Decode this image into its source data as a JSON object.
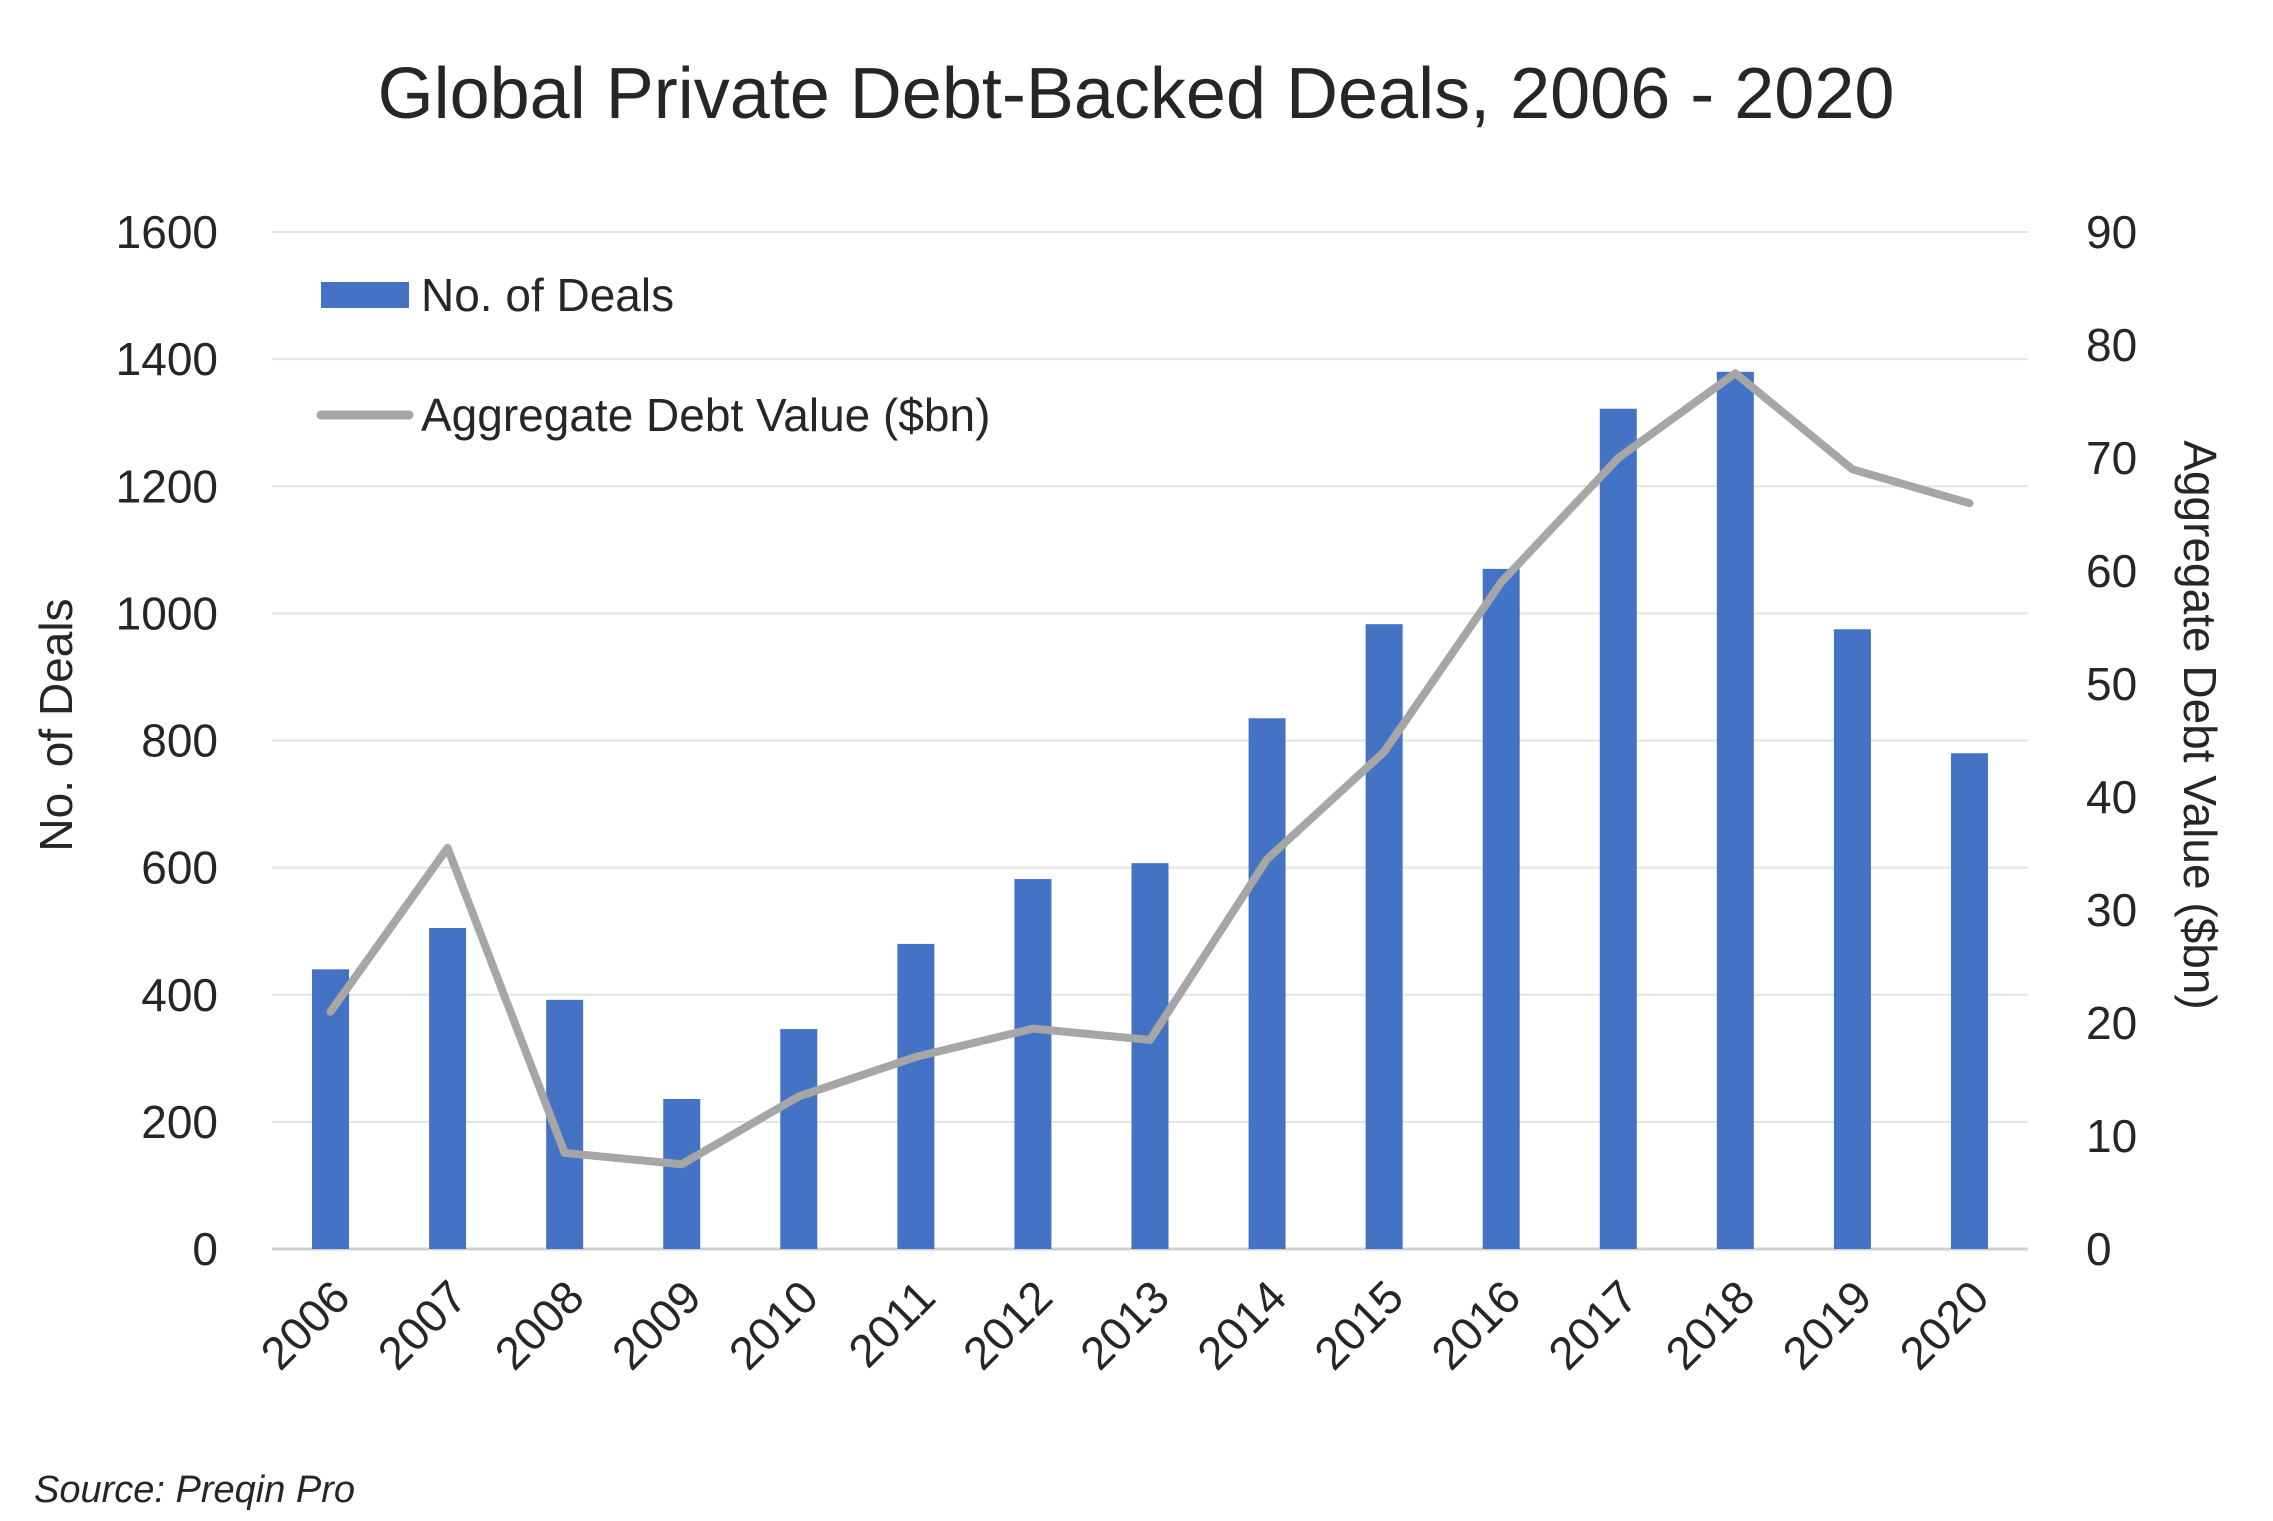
{
  "chart_data": {
    "type": "bar",
    "title": "Global Private Debt-Backed Deals, 2006 - 2020",
    "categories": [
      "2006",
      "2007",
      "2008",
      "2009",
      "2010",
      "2011",
      "2012",
      "2013",
      "2014",
      "2015",
      "2016",
      "2017",
      "2018",
      "2019",
      "2020"
    ],
    "series": [
      {
        "name": "No. of Deals",
        "type": "bar",
        "axis": "left",
        "color": "#4472C4",
        "values": [
          440,
          505,
          392,
          236,
          346,
          480,
          582,
          607,
          835,
          983,
          1070,
          1322,
          1380,
          975,
          780
        ]
      },
      {
        "name": "Aggregate Debt Value ($bn)",
        "type": "line",
        "axis": "right",
        "color": "#A6A6A6",
        "values": [
          21,
          35.5,
          8.5,
          7.5,
          13.5,
          17,
          19.5,
          18.5,
          34.5,
          44,
          59,
          70,
          77.5,
          69,
          66
        ]
      }
    ],
    "ylabel": "No. of Deals",
    "ylabel_right": "Aggregate Debt Value ($bn)",
    "ylim": [
      0,
      1600
    ],
    "ylim_right": [
      0,
      90
    ],
    "yticks": [
      "0",
      "200",
      "400",
      "600",
      "800",
      "1000",
      "1200",
      "1400",
      "1600"
    ],
    "yticks_right": [
      "0",
      "10",
      "20",
      "30",
      "40",
      "50",
      "60",
      "70",
      "80",
      "90"
    ],
    "grid": true,
    "legend_position": "top-left",
    "source": "Source: Preqin Pro"
  }
}
